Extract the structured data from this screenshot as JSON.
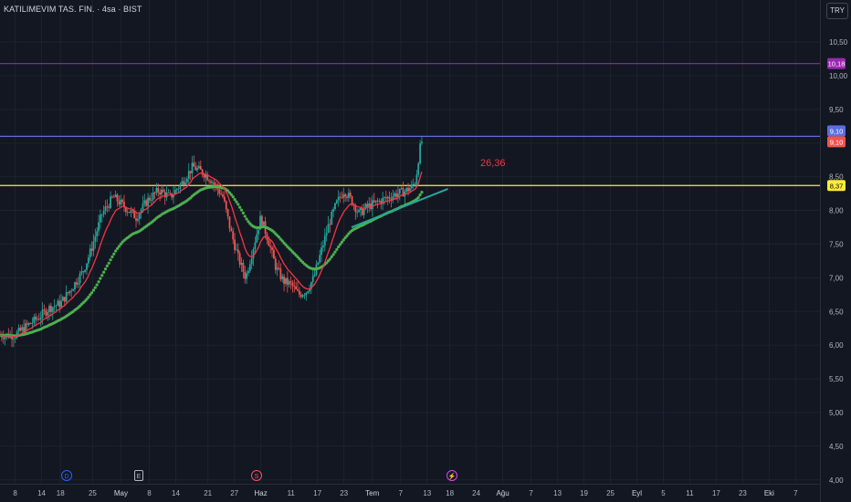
{
  "header": {
    "symbol": "KATILIMEVIM TAS. FIN. · 4sa · BIST",
    "currency": "TRY"
  },
  "colors": {
    "background": "#131722",
    "candle_up": "#26a69a",
    "candle_down": "#ef5350",
    "ema_fast": "#f23645",
    "ema_slow": "#4caf50",
    "trendline": "#26a69a",
    "line_10_18": "#9c27b0",
    "line_9_10": "#5b6ee1",
    "line_8_37": "#ffeb3b",
    "annotation": "#f23645"
  },
  "annotation_text": "26,36",
  "event_markers": [
    {
      "letter": "D",
      "icon": "dividend-icon",
      "color": "#2962ff"
    },
    {
      "letter": "E",
      "icon": "earnings-icon",
      "color": "#b2b5be"
    },
    {
      "letter": "S",
      "icon": "split-icon",
      "color": "#f7525f"
    },
    {
      "letter": "⚡",
      "icon": "flash-icon",
      "color": "#e040fb"
    }
  ],
  "chart_data": {
    "type": "candlestick",
    "y_ticks": [
      "10,50",
      "10,00",
      "9,50",
      "9,00",
      "8,50",
      "8,00",
      "7,50",
      "7,00",
      "6,50",
      "6,00",
      "5,50",
      "5,00",
      "4,50",
      "4,00"
    ],
    "y_tick_values": [
      10.5,
      10.0,
      9.5,
      9.0,
      8.5,
      8.0,
      7.5,
      7.0,
      6.5,
      6.0,
      5.5,
      5.0,
      4.5,
      4.0
    ],
    "ylim": [
      3.97,
      10.88
    ],
    "x_ticks": [
      {
        "label": "8",
        "x": 8
      },
      {
        "label": "14",
        "x": 22
      },
      {
        "label": "18",
        "x": 32
      },
      {
        "label": "25",
        "x": 49
      },
      {
        "label": "May",
        "x": 64
      },
      {
        "label": "8",
        "x": 79
      },
      {
        "label": "14",
        "x": 93
      },
      {
        "label": "21",
        "x": 110
      },
      {
        "label": "27",
        "x": 124
      },
      {
        "label": "Haz",
        "x": 138
      },
      {
        "label": "11",
        "x": 154
      },
      {
        "label": "17",
        "x": 168
      },
      {
        "label": "23",
        "x": 182
      },
      {
        "label": "Tem",
        "x": 197
      },
      {
        "label": "7",
        "x": 212
      },
      {
        "label": "13",
        "x": 226
      },
      {
        "label": "18",
        "x": 238
      },
      {
        "label": "24",
        "x": 252
      },
      {
        "label": "Ağu",
        "x": 266
      },
      {
        "label": "7",
        "x": 281
      },
      {
        "label": "13",
        "x": 295
      },
      {
        "label": "19",
        "x": 309
      },
      {
        "label": "25",
        "x": 323
      },
      {
        "label": "Eyl",
        "x": 337
      },
      {
        "label": "5",
        "x": 351
      },
      {
        "label": "11",
        "x": 365
      },
      {
        "label": "17",
        "x": 379
      },
      {
        "label": "23",
        "x": 393
      },
      {
        "label": "Eki",
        "x": 407
      },
      {
        "label": "7",
        "x": 421
      }
    ],
    "x_tick_unit_span": [
      0,
      430
    ],
    "price_lines": [
      {
        "label": "10,18",
        "value": 10.18
      },
      {
        "label": "9,10",
        "value": 9.1
      },
      {
        "label": "8,37",
        "value": 8.37
      }
    ],
    "last_price_label": "9,10",
    "waypoints": [
      [
        0,
        6.15
      ],
      [
        8,
        6.15
      ],
      [
        14,
        6.28
      ],
      [
        20,
        6.4
      ],
      [
        26,
        6.55
      ],
      [
        32,
        6.62
      ],
      [
        38,
        6.85
      ],
      [
        44,
        7.1
      ],
      [
        48,
        7.4
      ],
      [
        54,
        7.95
      ],
      [
        60,
        8.2
      ],
      [
        66,
        8.05
      ],
      [
        72,
        7.9
      ],
      [
        78,
        8.15
      ],
      [
        84,
        8.3
      ],
      [
        90,
        8.2
      ],
      [
        96,
        8.4
      ],
      [
        102,
        8.65
      ],
      [
        108,
        8.55
      ],
      [
        112,
        8.45
      ],
      [
        118,
        8.2
      ],
      [
        122,
        7.7
      ],
      [
        126,
        7.3
      ],
      [
        130,
        7.0
      ],
      [
        134,
        7.45
      ],
      [
        138,
        7.9
      ],
      [
        142,
        7.55
      ],
      [
        146,
        7.15
      ],
      [
        150,
        6.95
      ],
      [
        154,
        6.9
      ],
      [
        158,
        6.75
      ],
      [
        162,
        6.8
      ],
      [
        166,
        7.0
      ],
      [
        170,
        7.4
      ],
      [
        174,
        7.8
      ],
      [
        178,
        8.1
      ],
      [
        182,
        8.3
      ],
      [
        186,
        8.15
      ],
      [
        190,
        7.95
      ],
      [
        194,
        8.05
      ],
      [
        198,
        8.1
      ],
      [
        202,
        8.15
      ],
      [
        206,
        8.2
      ],
      [
        210,
        8.25
      ],
      [
        214,
        8.28
      ],
      [
        218,
        8.35
      ],
      [
        220,
        8.45
      ],
      [
        222,
        8.9
      ],
      [
        224,
        9.1
      ]
    ],
    "trendline": {
      "x": [
        186,
        237
      ],
      "y": [
        7.75,
        8.32
      ]
    }
  }
}
